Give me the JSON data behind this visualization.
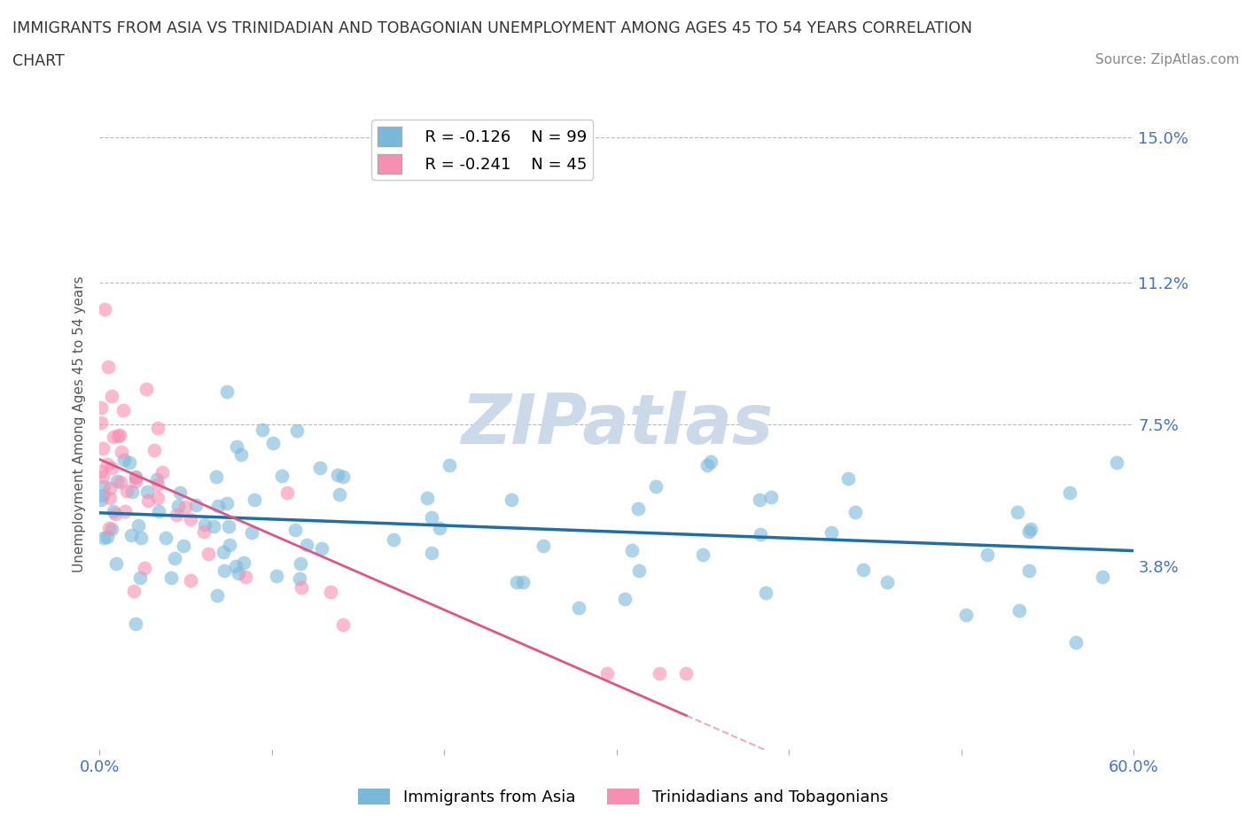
{
  "title_line1": "IMMIGRANTS FROM ASIA VS TRINIDADIAN AND TOBAGONIAN UNEMPLOYMENT AMONG AGES 45 TO 54 YEARS CORRELATION",
  "title_line2": "CHART",
  "source_text": "Source: ZipAtlas.com",
  "ylabel": "Unemployment Among Ages 45 to 54 years",
  "xlim": [
    0.0,
    0.6
  ],
  "ylim": [
    -0.01,
    0.16
  ],
  "xticks": [
    0.0,
    0.1,
    0.2,
    0.3,
    0.4,
    0.5,
    0.6
  ],
  "xticklabels": [
    "0.0%",
    "",
    "",
    "",
    "",
    "",
    "60.0%"
  ],
  "ytick_positions": [
    0.038,
    0.075,
    0.112,
    0.15
  ],
  "ytick_labels": [
    "3.8%",
    "7.5%",
    "11.2%",
    "15.0%"
  ],
  "hlines": [
    0.075,
    0.112,
    0.15
  ],
  "legend_r1": "R = -0.126",
  "legend_n1": "N = 99",
  "legend_r2": "R = -0.241",
  "legend_n2": "N = 45",
  "color_asia": "#7ab8d9",
  "color_tnt": "#f78fb3",
  "color_asia_line": "#1e6fa8",
  "color_tnt_line": "#e05585",
  "watermark_color": "#ccd9e8"
}
